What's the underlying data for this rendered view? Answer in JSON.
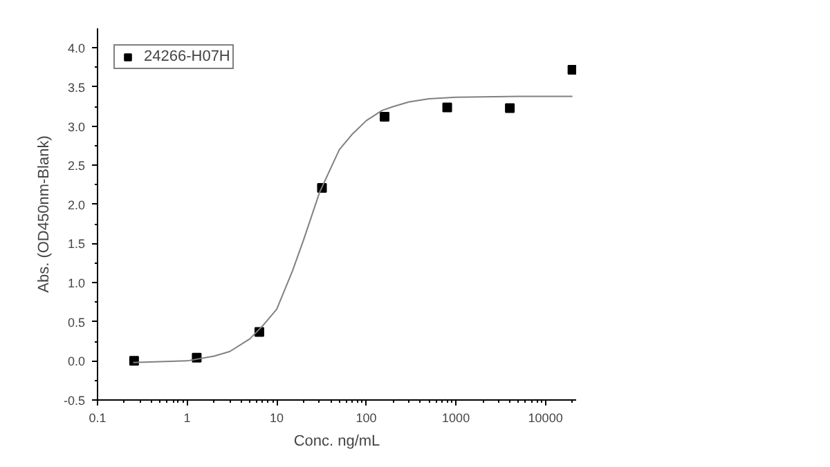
{
  "chart_data": {
    "type": "scatter",
    "xlabel": "Conc. ng/mL",
    "ylabel": "Abs. (OD450nm-Blank)",
    "log": "x",
    "xlim": [
      0.1,
      22000
    ],
    "xticks": [
      0.1,
      1,
      10,
      100,
      1000,
      10000
    ],
    "ylim": [
      -0.5,
      4.25
    ],
    "yticks": [
      -0.5,
      {
        "value": 0,
        "label": "0.0"
      },
      0.5,
      {
        "value": 1,
        "label": "1.0"
      },
      1.5,
      {
        "value": 2,
        "label": "2.0"
      },
      2.5,
      {
        "value": 3,
        "label": "3.0"
      },
      3.5,
      {
        "value": 4,
        "label": "4.0"
      }
    ],
    "series": [
      {
        "name": "24266-H07H",
        "marker": "square",
        "color": "#000000",
        "x": [
          0.256,
          1.28,
          6.4,
          32,
          160,
          800,
          4000,
          20000
        ],
        "values": [
          0.0,
          0.04,
          0.37,
          2.21,
          3.12,
          3.24,
          3.23,
          3.72
        ]
      },
      {
        "type": "line",
        "color": "#808080",
        "x": [
          0.25,
          0.5,
          1,
          2,
          3,
          5,
          7,
          10,
          15,
          20,
          30,
          50,
          70,
          100,
          150,
          200,
          300,
          500,
          1000,
          5000,
          20000
        ],
        "values": [
          -0.02,
          -0.01,
          0.0,
          0.06,
          0.12,
          0.28,
          0.45,
          0.66,
          1.15,
          1.55,
          2.15,
          2.7,
          2.9,
          3.07,
          3.2,
          3.25,
          3.31,
          3.35,
          3.37,
          3.38,
          3.38
        ]
      }
    ],
    "legend": "top left",
    "grid": false
  }
}
